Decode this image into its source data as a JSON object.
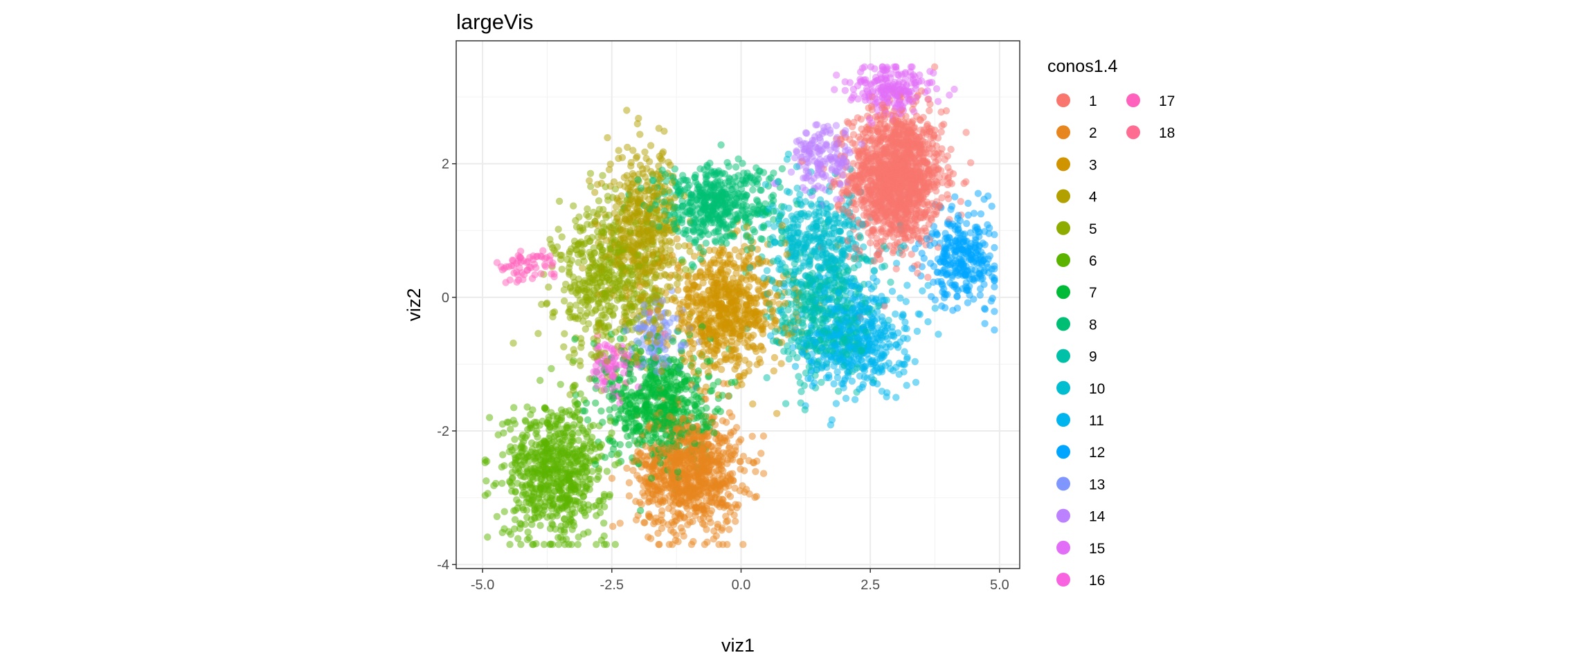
{
  "chart_data": {
    "type": "scatter",
    "title": "largeVis",
    "xlabel": "viz1",
    "ylabel": "viz2",
    "xlim": [
      -5.51,
      5.39
    ],
    "ylim": [
      -4.06,
      3.84
    ],
    "x_ticks": [
      -5.0,
      -2.5,
      0.0,
      2.5,
      5.0
    ],
    "x_tick_labels": [
      "-5.0",
      "-2.5",
      "0.0",
      "2.5",
      "5.0"
    ],
    "y_ticks": [
      -4,
      -2,
      0,
      2
    ],
    "y_tick_labels": [
      "-4",
      "-2",
      "0",
      "2"
    ],
    "grid": true,
    "point_alpha": 0.5,
    "legend": {
      "title": "conos1.4",
      "placement": "right",
      "columns": 2,
      "entries": [
        "1",
        "2",
        "3",
        "4",
        "5",
        "6",
        "7",
        "8",
        "9",
        "10",
        "11",
        "12",
        "13",
        "14",
        "15",
        "16",
        "17",
        "18"
      ]
    },
    "colors": [
      "#F8766D",
      "#E7851E",
      "#D09400",
      "#B2A000",
      "#8EAB00",
      "#5BB300",
      "#00BA38",
      "#00BF74",
      "#00C0A7",
      "#00BDD0",
      "#00B5EE",
      "#00A5FF",
      "#7F96FF",
      "#BC81FF",
      "#E26EF7",
      "#F863DF",
      "#FF62BC",
      "#FF6C91"
    ],
    "clusters": [
      {
        "name": "1",
        "center": [
          3.0,
          1.8
        ],
        "spread": [
          0.45,
          0.5
        ],
        "count": 1400
      },
      {
        "name": "2",
        "center": [
          -1.0,
          -2.6
        ],
        "spread": [
          0.5,
          0.45
        ],
        "count": 900
      },
      {
        "name": "3",
        "center": [
          -0.3,
          -0.2
        ],
        "spread": [
          0.6,
          0.45
        ],
        "count": 700
      },
      {
        "name": "4",
        "center": [
          -1.9,
          1.0
        ],
        "spread": [
          0.35,
          0.6
        ],
        "count": 500
      },
      {
        "name": "5",
        "center": [
          -2.6,
          0.2
        ],
        "spread": [
          0.5,
          0.6
        ],
        "count": 500
      },
      {
        "name": "6",
        "center": [
          -3.6,
          -2.6
        ],
        "spread": [
          0.5,
          0.5
        ],
        "count": 700
      },
      {
        "name": "7",
        "center": [
          -1.6,
          -1.6
        ],
        "spread": [
          0.5,
          0.45
        ],
        "count": 600
      },
      {
        "name": "8",
        "center": [
          -0.5,
          1.4
        ],
        "spread": [
          0.6,
          0.3
        ],
        "count": 500
      },
      {
        "name": "9",
        "center": [
          1.6,
          -0.3
        ],
        "spread": [
          0.5,
          0.5
        ],
        "count": 400
      },
      {
        "name": "10",
        "center": [
          1.5,
          0.8
        ],
        "spread": [
          0.5,
          0.4
        ],
        "count": 400
      },
      {
        "name": "11",
        "center": [
          2.2,
          -0.6
        ],
        "spread": [
          0.5,
          0.4
        ],
        "count": 500
      },
      {
        "name": "12",
        "center": [
          4.3,
          0.6
        ],
        "spread": [
          0.35,
          0.35
        ],
        "count": 300
      },
      {
        "name": "13",
        "center": [
          -1.6,
          -0.6
        ],
        "spread": [
          0.3,
          0.3
        ],
        "count": 100
      },
      {
        "name": "14",
        "center": [
          1.6,
          2.1
        ],
        "spread": [
          0.3,
          0.25
        ],
        "count": 150
      },
      {
        "name": "15",
        "center": [
          2.9,
          3.1
        ],
        "spread": [
          0.4,
          0.2
        ],
        "count": 200
      },
      {
        "name": "16",
        "center": [
          -2.5,
          -1.0
        ],
        "spread": [
          0.2,
          0.2
        ],
        "count": 80
      },
      {
        "name": "17",
        "center": [
          -4.2,
          0.45
        ],
        "spread": [
          0.3,
          0.12
        ],
        "count": 60
      },
      {
        "name": "18",
        "center": [
          -2.0,
          -0.8
        ],
        "spread": [
          0.4,
          0.4
        ],
        "count": 10
      }
    ]
  }
}
